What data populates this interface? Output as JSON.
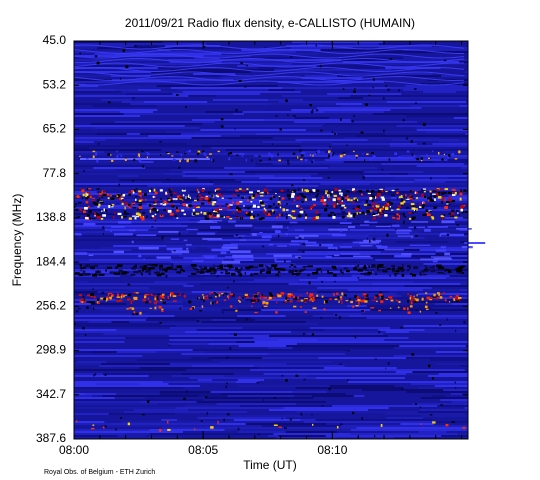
{
  "chart_data": {
    "type": "spectrogram",
    "title": "2011/09/21  Radio flux density, e-CALLISTO (HUMAIN)",
    "x_label": "Time (UT)",
    "y_label": "Frequency (MHz)",
    "credit": "Royal Obs. of Belgium - ETH Zurich",
    "xlim": [
      "08:00",
      "08:15:15"
    ],
    "xticks": [
      "08:00",
      "08:05",
      "08:10"
    ],
    "yticks": [
      {
        "value": 45,
        "label": "45.0"
      },
      {
        "value": 53.2,
        "label": "53.2"
      },
      {
        "value": 65.2,
        "label": "65.2"
      },
      {
        "value": 77.8,
        "label": "77.8"
      },
      {
        "value": 138.8,
        "label": "138.8"
      },
      {
        "value": 184.4,
        "label": "184.4"
      },
      {
        "value": 256.2,
        "label": "256.2"
      },
      {
        "value": 298.9,
        "label": "298.9"
      },
      {
        "value": 342.7,
        "label": "342.7"
      },
      {
        "value": 387.6,
        "label": "387.6"
      }
    ]
  }
}
